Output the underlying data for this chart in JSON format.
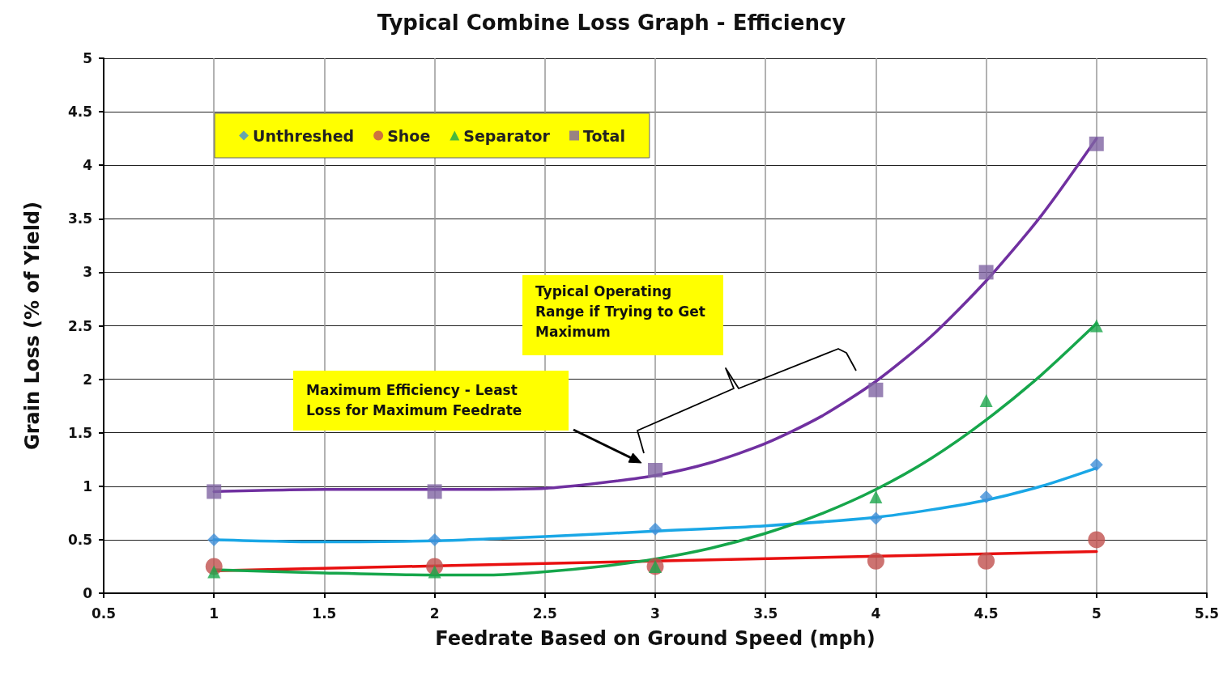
{
  "chart_data": {
    "type": "scatter",
    "title": "Typical Combine Loss Graph - Efficiency",
    "xlabel": "Feedrate Based on Ground Speed (mph)",
    "ylabel": "Grain Loss (% of Yield)",
    "xlim": [
      0.5,
      5.5
    ],
    "xticks": [
      0.5,
      1,
      1.5,
      2,
      2.5,
      3,
      3.5,
      4,
      4.5,
      5,
      5.5
    ],
    "ylim": [
      0,
      5
    ],
    "yticks": [
      0,
      0.5,
      1,
      1.5,
      2,
      2.5,
      3,
      3.5,
      4,
      4.5,
      5
    ],
    "grid": true,
    "legend": "top left",
    "series": [
      {
        "name": "Unthreshed",
        "marker": "diamond",
        "color": "#3e8fd8",
        "x": [
          1,
          2,
          3,
          4,
          4.5,
          5
        ],
        "values": [
          0.5,
          0.5,
          0.6,
          0.7,
          0.9,
          1.2
        ]
      },
      {
        "name": "Shoe",
        "marker": "circle",
        "color": "#c0504d",
        "x": [
          1,
          2,
          3,
          4,
          4.5,
          5
        ],
        "values": [
          0.25,
          0.25,
          0.25,
          0.3,
          0.3,
          0.5
        ]
      },
      {
        "name": "Separator",
        "marker": "triangle",
        "color": "#1aa64b",
        "x": [
          1,
          2,
          3,
          4,
          4.5,
          5
        ],
        "values": [
          0.2,
          0.2,
          0.25,
          0.9,
          1.8,
          2.5
        ]
      },
      {
        "name": "Total",
        "marker": "square",
        "color": "#8064a2",
        "x": [
          1,
          2,
          3,
          4,
          4.5,
          5
        ],
        "values": [
          0.95,
          0.95,
          1.15,
          1.9,
          3.0,
          4.2
        ]
      },
      {
        "type": "line",
        "marker": "none",
        "color": "#1aa7e6",
        "x": [
          1,
          1.5,
          2,
          2.5,
          3,
          3.5,
          4,
          4.25,
          4.5,
          4.75,
          5
        ],
        "values": [
          0.5,
          0.48,
          0.49,
          0.53,
          0.58,
          0.63,
          0.71,
          0.78,
          0.87,
          1.0,
          1.17
        ]
      },
      {
        "type": "line",
        "marker": "none",
        "color": "#e81010",
        "x": [
          1,
          3,
          5
        ],
        "values": [
          0.21,
          0.3,
          0.39
        ]
      },
      {
        "type": "line",
        "marker": "none",
        "color": "#16a64b",
        "x": [
          1,
          1.5,
          2,
          2.25,
          2.5,
          2.75,
          3,
          3.25,
          3.5,
          3.75,
          4,
          4.25,
          4.5,
          4.75,
          5
        ],
        "values": [
          0.22,
          0.19,
          0.17,
          0.17,
          0.2,
          0.25,
          0.32,
          0.42,
          0.56,
          0.74,
          0.97,
          1.26,
          1.62,
          2.04,
          2.52
        ]
      },
      {
        "type": "line",
        "marker": "none",
        "color": "#7030a0",
        "x": [
          1,
          1.5,
          2,
          2.5,
          2.75,
          3,
          3.25,
          3.5,
          3.75,
          4,
          4.25,
          4.5,
          4.75,
          5
        ],
        "values": [
          0.95,
          0.97,
          0.97,
          0.98,
          1.03,
          1.1,
          1.22,
          1.4,
          1.65,
          1.98,
          2.4,
          2.92,
          3.53,
          4.25
        ]
      }
    ],
    "annotations": [
      "Maximum Efficiency - Least Loss for Maximum Feedrate",
      "Typical Operating Range if Trying to Get Maximum"
    ]
  }
}
